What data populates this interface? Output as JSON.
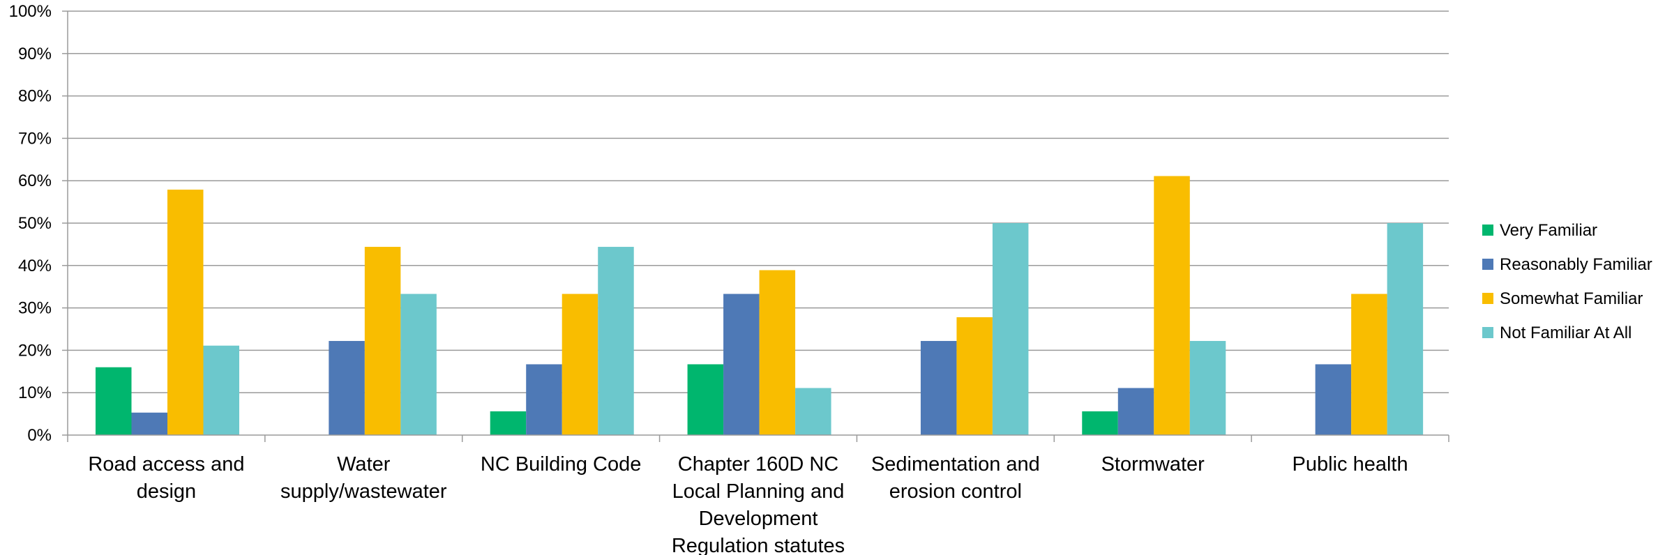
{
  "chart_data": {
    "type": "bar",
    "categories": [
      [
        "Road access and",
        "design"
      ],
      [
        "Water",
        "supply/wastewater"
      ],
      [
        "NC Building Code"
      ],
      [
        "Chapter 160D NC",
        "Local Planning and",
        "Development",
        "Regulation statutes"
      ],
      [
        "Sedimentation and",
        "erosion control"
      ],
      [
        "Stormwater"
      ],
      [
        "Public health"
      ]
    ],
    "series": [
      {
        "name": "Very Familiar",
        "color": "#00B66E",
        "values": [
          16,
          0,
          5.6,
          16.7,
          0,
          5.6,
          0
        ]
      },
      {
        "name": "Reasonably Familiar",
        "color": "#4E79B6",
        "values": [
          5.3,
          22.2,
          16.7,
          33.3,
          22.2,
          11.1,
          16.7
        ]
      },
      {
        "name": "Somewhat Familiar",
        "color": "#F9BD00",
        "values": [
          57.9,
          44.4,
          33.3,
          38.9,
          27.8,
          61.1,
          33.3
        ]
      },
      {
        "name": "Not Familiar At All",
        "color": "#6CC8CC",
        "values": [
          21.1,
          33.3,
          44.4,
          11.1,
          50,
          22.2,
          50
        ]
      }
    ],
    "ylim": [
      0,
      100
    ],
    "yticks": [
      0,
      10,
      20,
      30,
      40,
      50,
      60,
      70,
      80,
      90,
      100
    ],
    "ytick_suffix": "%",
    "grid": true,
    "legend_position": "right",
    "title": "",
    "xlabel": "",
    "ylabel": ""
  }
}
